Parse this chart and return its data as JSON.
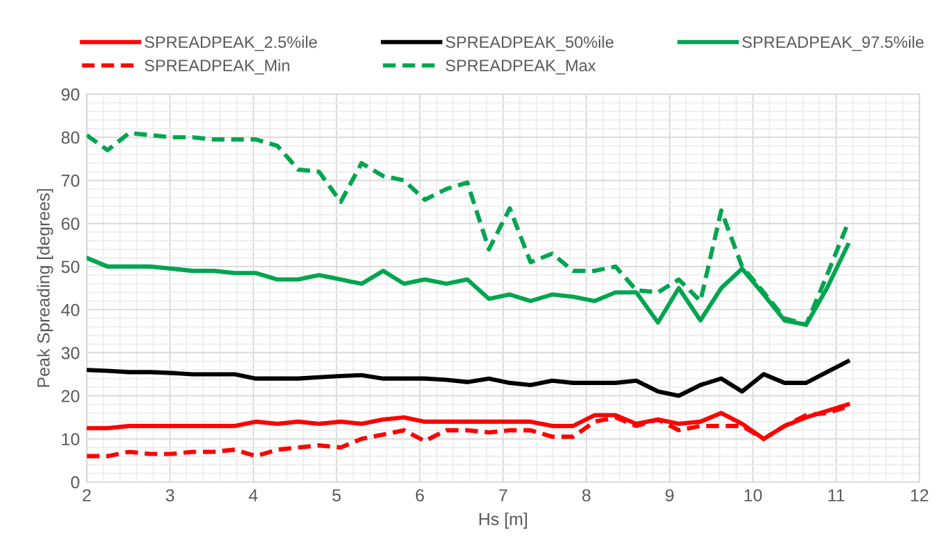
{
  "chart_data": {
    "type": "line",
    "xlabel": "Hs [m]",
    "ylabel": "Peak Spreading [degrees]",
    "x": [
      2.0,
      2.25,
      2.51,
      2.76,
      3.02,
      3.27,
      3.52,
      3.78,
      4.03,
      4.29,
      4.54,
      4.79,
      5.05,
      5.3,
      5.56,
      5.81,
      6.06,
      6.32,
      6.57,
      6.83,
      7.08,
      7.33,
      7.59,
      7.84,
      8.1,
      8.35,
      8.6,
      8.86,
      9.11,
      9.37,
      9.62,
      9.87,
      10.13,
      10.38,
      10.64,
      10.89,
      11.14
    ],
    "series": [
      {
        "name": "SPREADPEAK_2.5%ile",
        "color": "#ff0000",
        "line_style": "solid",
        "values": [
          12.5,
          12.5,
          13,
          13,
          13,
          13,
          13,
          13,
          14,
          13.5,
          14,
          13.5,
          14,
          13.5,
          14.5,
          15,
          14,
          14,
          14,
          14,
          14,
          14,
          13,
          13,
          15.5,
          15.5,
          13.5,
          14.5,
          13.5,
          14,
          16,
          13.5,
          10,
          13,
          15,
          16.5,
          18
        ]
      },
      {
        "name": "SPREADPEAK_50%ile",
        "color": "#000000",
        "line_style": "solid",
        "values": [
          26,
          25.8,
          25.5,
          25.5,
          25.3,
          25,
          25,
          25,
          24,
          24,
          24,
          24.3,
          24.6,
          24.8,
          24,
          24,
          24,
          23.7,
          23.2,
          24,
          23,
          22.5,
          23.5,
          23,
          23,
          23,
          23.5,
          21,
          20,
          22.5,
          24,
          21,
          25,
          23,
          23,
          25.5,
          28
        ]
      },
      {
        "name": "SPREADPEAK_97.5%ile",
        "color": "#00a550",
        "line_style": "solid",
        "values": [
          52,
          50,
          50,
          50,
          49.5,
          49,
          49,
          48.5,
          48.5,
          47,
          47,
          48,
          47,
          46,
          49,
          46,
          47,
          46,
          47,
          42.5,
          43.5,
          42,
          43.5,
          43,
          42,
          44,
          44,
          37,
          45,
          37.5,
          45,
          49.5,
          43.5,
          37.5,
          36.5,
          45,
          55
        ]
      },
      {
        "name": "SPREADPEAK_Min",
        "color": "#ff0000",
        "line_style": "dashed",
        "values": [
          6,
          6,
          7,
          6.5,
          6.5,
          7,
          7,
          7.5,
          6,
          7.5,
          8,
          8.5,
          8,
          10,
          11,
          12,
          9.5,
          12,
          12,
          11.5,
          12,
          12,
          10.5,
          10.5,
          14,
          15,
          13,
          14.5,
          12,
          13,
          13,
          13,
          10,
          13,
          15.5,
          16,
          17.5
        ]
      },
      {
        "name": "SPREADPEAK_Max",
        "color": "#00a550",
        "line_style": "dashed",
        "values": [
          80.5,
          77,
          81,
          80.5,
          80,
          80,
          79.5,
          79.5,
          79.5,
          78,
          72.5,
          72,
          65,
          74,
          71,
          70,
          65.5,
          68,
          69.5,
          54,
          63.5,
          51,
          53,
          49,
          49,
          50,
          44.5,
          44,
          47,
          42,
          63,
          50,
          44,
          38,
          36.5,
          48,
          60
        ]
      }
    ],
    "xlim": [
      2,
      12
    ],
    "xticks": [
      2,
      3,
      4,
      5,
      6,
      7,
      8,
      9,
      10,
      11,
      12
    ],
    "ylim": [
      0,
      90
    ],
    "yticks": [
      0,
      10,
      20,
      30,
      40,
      50,
      60,
      70,
      80,
      90
    ],
    "grid": true,
    "legend": "top",
    "marker": "none"
  }
}
